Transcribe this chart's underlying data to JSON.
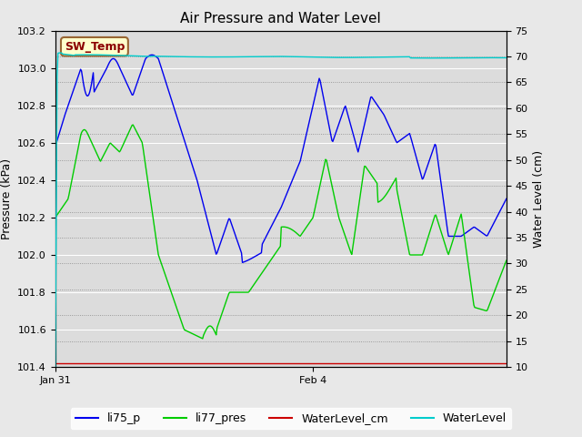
{
  "title": "Air Pressure and Water Level",
  "ylabel_left": "Pressure (kPa)",
  "ylabel_right": "Water Level (cm)",
  "ylim_left": [
    101.4,
    103.2
  ],
  "ylim_right": [
    10,
    75
  ],
  "yticks_left": [
    101.4,
    101.6,
    101.8,
    102.0,
    102.2,
    102.4,
    102.6,
    102.8,
    103.0,
    103.2
  ],
  "yticks_right": [
    10,
    15,
    20,
    25,
    30,
    35,
    40,
    45,
    50,
    55,
    60,
    65,
    70,
    75
  ],
  "xtick_positions": [
    0,
    4
  ],
  "xtick_labels": [
    "Jan 31",
    "Feb 4"
  ],
  "xlim": [
    0,
    7
  ],
  "annotation_text": "SW_Temp",
  "annotation_color": "#8B0000",
  "annotation_bg": "#FFFFCC",
  "annotation_border": "#996633",
  "fig_bg_color": "#E8E8E8",
  "plot_bg_color": "#DCDCDC",
  "grid_color": "#FFFFFF",
  "line_li75_p_color": "#0000EE",
  "line_li77_pres_color": "#00CC00",
  "line_wlcm_color": "#CC0000",
  "line_wl_color": "#00CCCC",
  "legend_labels": [
    "li75_p",
    "li77_pres",
    "WaterLevel_cm",
    "WaterLevel"
  ],
  "legend_colors": [
    "#0000EE",
    "#00CC00",
    "#CC0000",
    "#00CCCC"
  ],
  "title_fontsize": 11,
  "label_fontsize": 9,
  "tick_fontsize": 8,
  "legend_fontsize": 9
}
